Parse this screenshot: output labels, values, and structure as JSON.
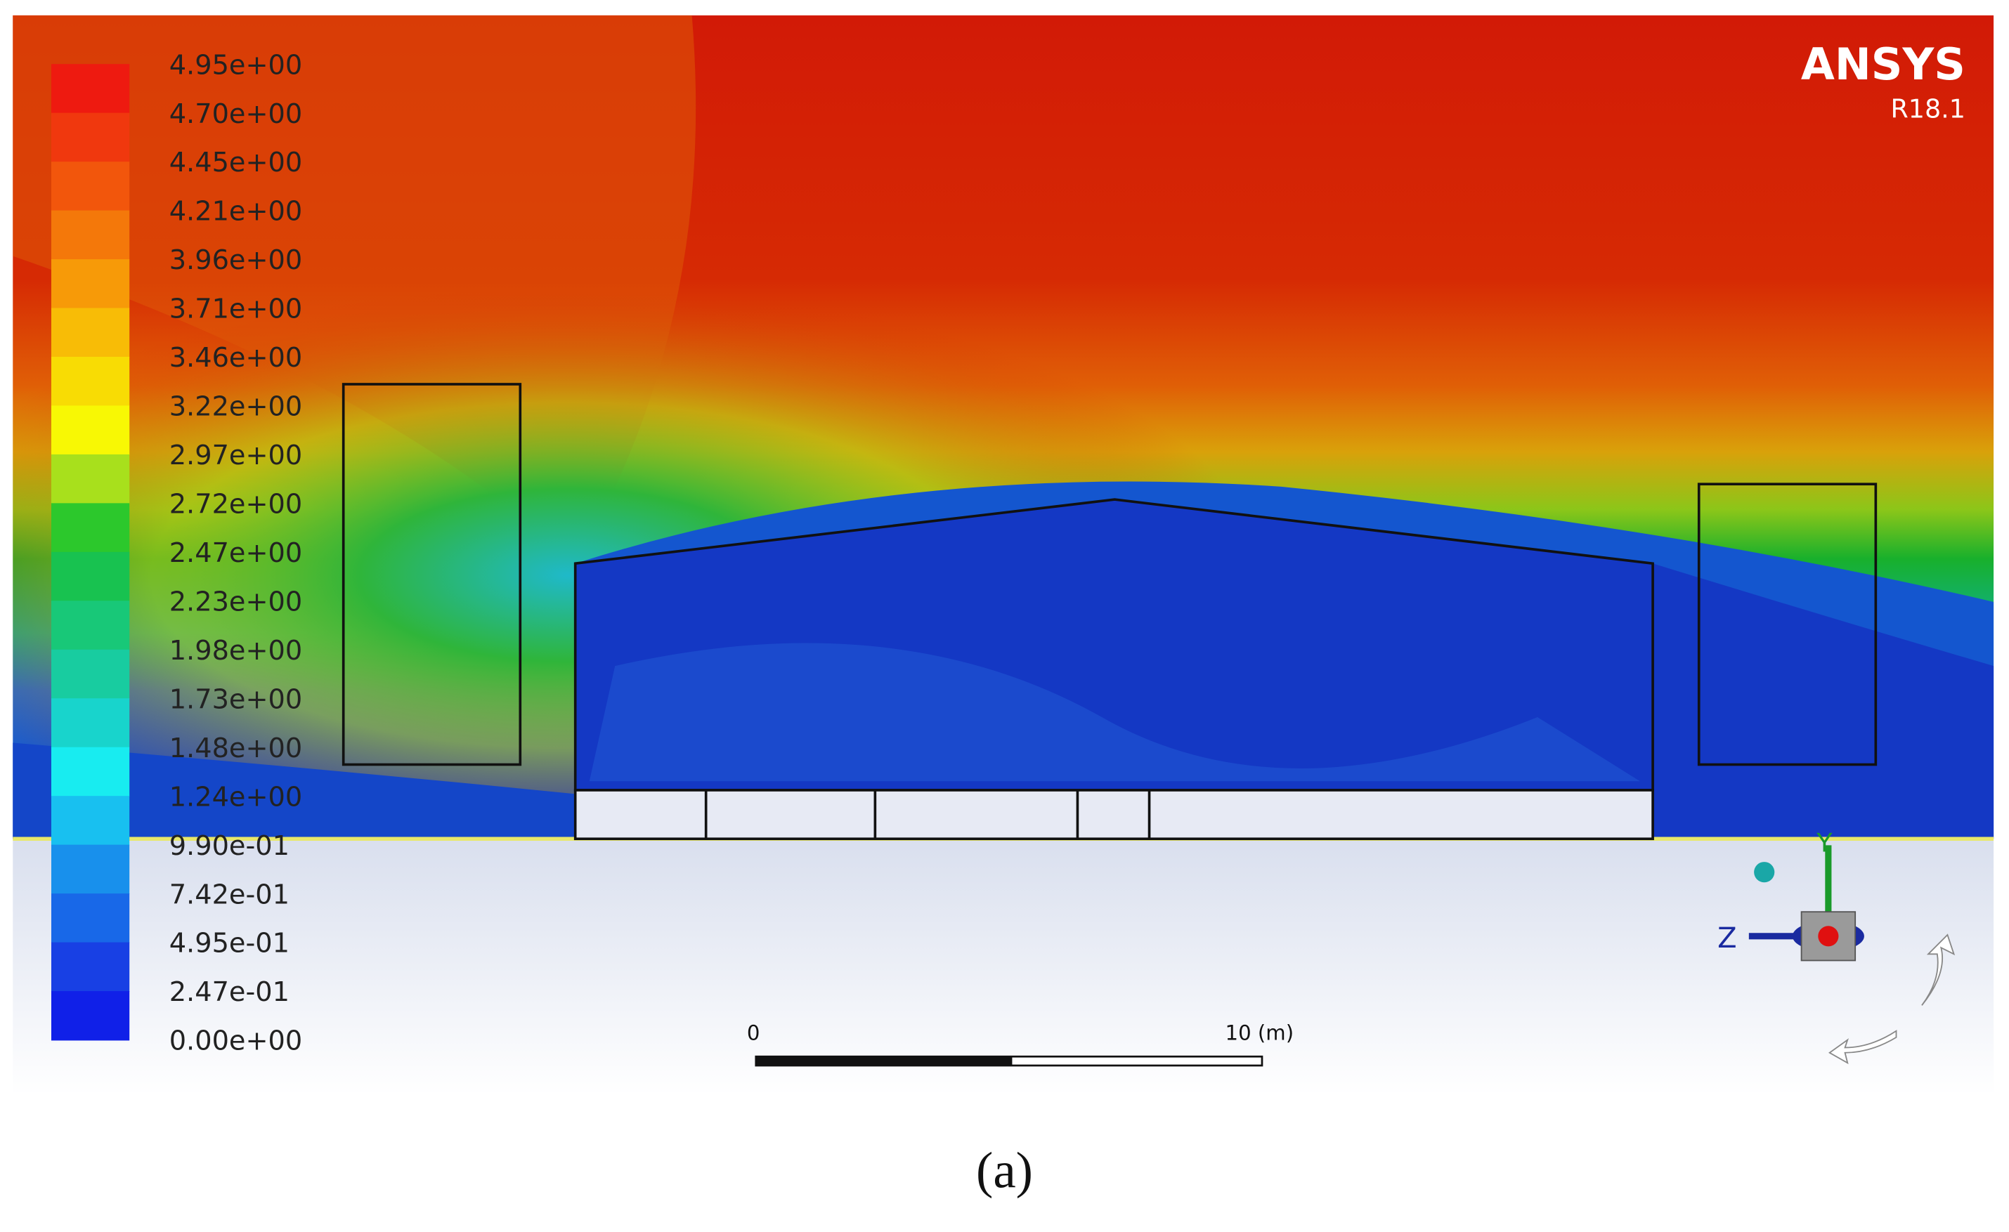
{
  "legend": {
    "labels": [
      "4.95e+00",
      "4.70e+00",
      "4.45e+00",
      "4.21e+00",
      "3.96e+00",
      "3.71e+00",
      "3.46e+00",
      "3.22e+00",
      "2.97e+00",
      "2.72e+00",
      "2.47e+00",
      "2.23e+00",
      "1.98e+00",
      "1.73e+00",
      "1.48e+00",
      "1.24e+00",
      "9.90e-01",
      "7.42e-01",
      "4.95e-01",
      "2.47e-01",
      "0.00e+00"
    ]
  },
  "logo": {
    "brand": "ANSYS",
    "version": "R18.1"
  },
  "scale_bar": {
    "start": "0",
    "end": "10 (m)"
  },
  "triad": {
    "y": "Y",
    "z": "Z"
  },
  "caption": "(a)"
}
